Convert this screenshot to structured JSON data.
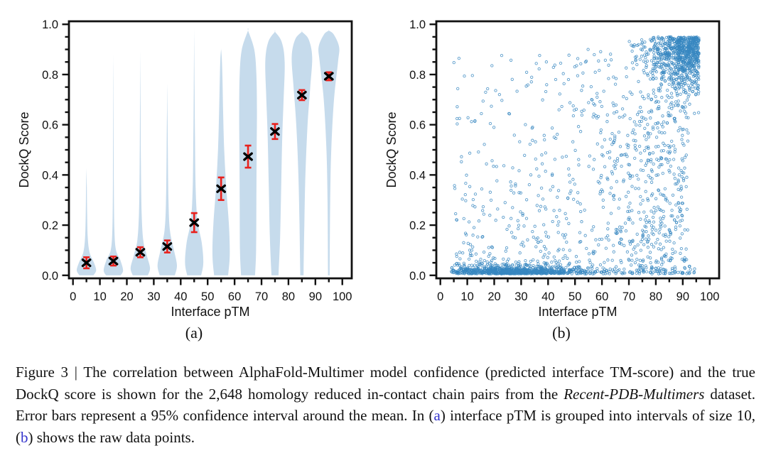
{
  "caption": {
    "text_color": "#111111",
    "link_color": "#3333cc",
    "segments": [
      {
        "text": "Figure 3 | The correlation between AlphaFold-Multimer model confidence (predicted interface TM-score) and the true DockQ score is shown for the 2,648 homology reduced in-contact chain pairs from the ",
        "style": "normal"
      },
      {
        "text": "Recent-PDB-Multimers",
        "style": "italic"
      },
      {
        "text": " dataset. Error bars represent a 95% confidence interval around the mean. In (",
        "style": "normal"
      },
      {
        "text": "a",
        "style": "link"
      },
      {
        "text": ") interface pTM is grouped into intervals of size 10, (",
        "style": "normal"
      },
      {
        "text": "b",
        "style": "link"
      },
      {
        "text": ") shows the raw data points.",
        "style": "normal"
      }
    ]
  },
  "chart_data": [
    {
      "type": "violin",
      "sublabel": "(a)",
      "xlabel": "Interface pTM",
      "ylabel": "DockQ Score",
      "xlim": [
        -1.5,
        103.5
      ],
      "ylim": [
        -0.012,
        1.012
      ],
      "x_ticks": [
        0,
        10,
        20,
        30,
        40,
        50,
        60,
        70,
        80,
        90,
        100
      ],
      "x_tick_labels": [
        "0",
        "10",
        "20",
        "30",
        "40",
        "50",
        "60",
        "70",
        "80",
        "90",
        "100"
      ],
      "x_minor_ticks": [
        5,
        15,
        25,
        35,
        45,
        55,
        65,
        75,
        85,
        95
      ],
      "y_ticks": [
        0,
        0.2,
        0.4,
        0.6,
        0.8,
        1.0
      ],
      "y_tick_labels": [
        "0.0",
        "0.2",
        "0.4",
        "0.6",
        "0.8",
        "1.0"
      ],
      "grid": false,
      "bin_size": 10,
      "colors": {
        "violin": "#c6dbec",
        "mean_marker": "#000000",
        "error_bar": "#e8211d",
        "axis": "#111111"
      },
      "groups": [
        {
          "center": 5,
          "mean": 0.05,
          "ci95": 0.022,
          "profile": [
            [
              0,
              2.6
            ],
            [
              0.02,
              3.6
            ],
            [
              0.05,
              2.8
            ],
            [
              0.09,
              1.2
            ],
            [
              0.15,
              0.5
            ],
            [
              0.25,
              0.25
            ],
            [
              0.35,
              0.14
            ],
            [
              0.42,
              0.02
            ]
          ]
        },
        {
          "center": 15,
          "mean": 0.057,
          "ci95": 0.018,
          "profile": [
            [
              0,
              2.7
            ],
            [
              0.02,
              3.6
            ],
            [
              0.06,
              2.6
            ],
            [
              0.1,
              1.0
            ],
            [
              0.18,
              0.38
            ],
            [
              0.35,
              0.18
            ],
            [
              0.6,
              0.1
            ],
            [
              0.85,
              0.02
            ]
          ]
        },
        {
          "center": 25,
          "mean": 0.092,
          "ci95": 0.02,
          "profile": [
            [
              0,
              2.8
            ],
            [
              0.03,
              3.6
            ],
            [
              0.08,
              2.4
            ],
            [
              0.14,
              1.1
            ],
            [
              0.25,
              0.5
            ],
            [
              0.45,
              0.22
            ],
            [
              0.7,
              0.1
            ],
            [
              0.87,
              0.02
            ]
          ]
        },
        {
          "center": 35,
          "mean": 0.115,
          "ci95": 0.024,
          "profile": [
            [
              0,
              2.8
            ],
            [
              0.04,
              3.6
            ],
            [
              0.1,
              2.5
            ],
            [
              0.18,
              1.0
            ],
            [
              0.3,
              0.45
            ],
            [
              0.5,
              0.22
            ],
            [
              0.65,
              0.1
            ],
            [
              0.75,
              0.02
            ]
          ]
        },
        {
          "center": 45,
          "mean": 0.21,
          "ci95": 0.038,
          "profile": [
            [
              0,
              2.6
            ],
            [
              0.05,
              3.4
            ],
            [
              0.13,
              2.8
            ],
            [
              0.22,
              1.2
            ],
            [
              0.35,
              0.55
            ],
            [
              0.55,
              0.3
            ],
            [
              0.75,
              0.15
            ],
            [
              0.96,
              0.02
            ]
          ]
        },
        {
          "center": 55,
          "mean": 0.345,
          "ci95": 0.045,
          "profile": [
            [
              0,
              2.6
            ],
            [
              0.08,
              3.2
            ],
            [
              0.2,
              2.9
            ],
            [
              0.35,
              1.9
            ],
            [
              0.5,
              1.15
            ],
            [
              0.65,
              0.75
            ],
            [
              0.78,
              0.5
            ],
            [
              0.86,
              0.28
            ],
            [
              0.9,
              0.02
            ]
          ]
        },
        {
          "center": 65,
          "mean": 0.473,
          "ci95": 0.044,
          "profile": [
            [
              0,
              2.6
            ],
            [
              0.1,
              3.0
            ],
            [
              0.3,
              3.1
            ],
            [
              0.5,
              3.2
            ],
            [
              0.65,
              3.3
            ],
            [
              0.8,
              3.1
            ],
            [
              0.9,
              2.3
            ],
            [
              0.975,
              0.02
            ]
          ]
        },
        {
          "center": 75,
          "mean": 0.573,
          "ci95": 0.03,
          "profile": [
            [
              0,
              1.3
            ],
            [
              0.15,
              1.9
            ],
            [
              0.35,
              2.3
            ],
            [
              0.55,
              2.7
            ],
            [
              0.7,
              3.2
            ],
            [
              0.85,
              3.6
            ],
            [
              0.93,
              2.5
            ],
            [
              0.97,
              0.02
            ]
          ]
        },
        {
          "center": 85,
          "mean": 0.718,
          "ci95": 0.02,
          "profile": [
            [
              0,
              0.6
            ],
            [
              0.2,
              0.9
            ],
            [
              0.4,
              1.3
            ],
            [
              0.6,
              2.1
            ],
            [
              0.75,
              3.1
            ],
            [
              0.87,
              3.8
            ],
            [
              0.94,
              2.5
            ],
            [
              0.97,
              0.02
            ]
          ]
        },
        {
          "center": 95,
          "mean": 0.793,
          "ci95": 0.016,
          "profile": [
            [
              0,
              0.3
            ],
            [
              0.3,
              0.5
            ],
            [
              0.5,
              0.9
            ],
            [
              0.7,
              1.9
            ],
            [
              0.85,
              3.4
            ],
            [
              0.91,
              3.8
            ],
            [
              0.96,
              1.8
            ],
            [
              0.975,
              0.02
            ]
          ]
        }
      ]
    },
    {
      "type": "scatter",
      "sublabel": "(b)",
      "xlabel": "Interface pTM",
      "ylabel": "DockQ Score",
      "xlim": [
        -1.5,
        103.5
      ],
      "ylim": [
        -0.012,
        1.012
      ],
      "x_ticks": [
        0,
        10,
        20,
        30,
        40,
        50,
        60,
        70,
        80,
        90,
        100
      ],
      "x_tick_labels": [
        "0",
        "10",
        "20",
        "30",
        "40",
        "50",
        "60",
        "70",
        "80",
        "90",
        "100"
      ],
      "x_minor_ticks": [
        5,
        15,
        25,
        35,
        45,
        55,
        65,
        75,
        85,
        95
      ],
      "y_ticks": [
        0,
        0.2,
        0.4,
        0.6,
        0.8,
        1.0
      ],
      "y_tick_labels": [
        "0.0",
        "0.2",
        "0.4",
        "0.6",
        "0.8",
        "1.0"
      ],
      "grid": false,
      "n_points": 2648,
      "marker": {
        "shape": "open-circle",
        "radius": 1.7,
        "color": "#3787c1",
        "opacity": 0.8,
        "stroke_width": 0.9
      },
      "colors": {
        "axis": "#111111"
      },
      "generator": {
        "seed": 7,
        "components": [
          {
            "weight": 0.24,
            "x": {
              "dist": "normal",
              "mu": 27,
              "sigma": 13,
              "min": 4,
              "max": 95
            },
            "y": {
              "dist": "halfnormal",
              "base": 0.006,
              "sigma": 0.014,
              "min": 0.004,
              "max": 0.055
            }
          },
          {
            "weight": 0.1,
            "x": {
              "dist": "uniform",
              "min": 5,
              "max": 95
            },
            "y": {
              "dist": "halfnormal",
              "base": 0.006,
              "sigma": 0.016,
              "min": 0.004,
              "max": 0.06
            }
          },
          {
            "weight": 0.28,
            "x": {
              "dist": "reflect",
              "base": 96,
              "sigma": 9,
              "min": 55,
              "max": 97
            },
            "y": {
              "dist": "reflect",
              "base": 0.95,
              "sigma": 0.1,
              "min": 0.5,
              "max": 0.975
            }
          },
          {
            "weight": 0.27,
            "x": {
              "dist": "reflect",
              "base": 92,
              "sigma": 24,
              "min": 22,
              "max": 97
            },
            "y": {
              "dist": "power",
              "min": 0.05,
              "span": 0.85,
              "exp": 1.2
            }
          },
          {
            "weight": 0.11,
            "x": {
              "dist": "uniform",
              "min": 5,
              "max": 48
            },
            "y": {
              "dist": "power",
              "min": 0.04,
              "span": 0.85,
              "exp": 2.4
            }
          }
        ]
      }
    }
  ]
}
